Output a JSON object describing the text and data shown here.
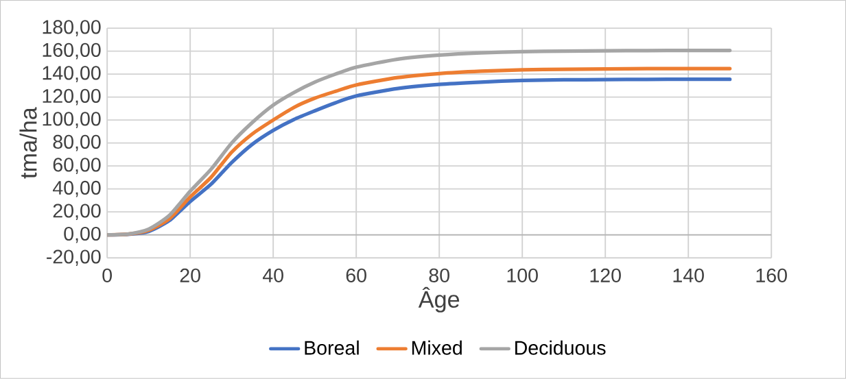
{
  "chart_data": {
    "type": "line",
    "xlabel": "Âge",
    "ylabel": "tma/ha",
    "x": [
      0,
      5,
      10,
      15,
      20,
      25,
      30,
      35,
      40,
      45,
      50,
      55,
      60,
      70,
      80,
      90,
      100,
      110,
      120,
      130,
      140,
      150
    ],
    "series": [
      {
        "name": "Boreal",
        "color": "#4472c4",
        "values": [
          0,
          0.5,
          3,
          12.5,
          29,
          44,
          63,
          79,
          91,
          100.5,
          108,
          115,
          121,
          127.5,
          131,
          133,
          134.5,
          135,
          135.2,
          135.4,
          135.5,
          135.5
        ]
      },
      {
        "name": "Mixed",
        "color": "#ed7d31",
        "values": [
          0,
          0.6,
          4,
          14,
          33,
          50,
          72,
          88,
          100,
          111,
          119,
          125,
          130.5,
          137,
          140.5,
          142.5,
          143.7,
          144.2,
          144.5,
          144.7,
          144.8,
          144.8
        ]
      },
      {
        "name": "Deciduous",
        "color": "#a5a5a5",
        "values": [
          0,
          0.7,
          5,
          17,
          38,
          57,
          80,
          98,
          113,
          124,
          133,
          140,
          146,
          153,
          156.5,
          158.5,
          159.5,
          160,
          160.3,
          160.5,
          160.6,
          160.6
        ]
      }
    ],
    "xlim": [
      0,
      160
    ],
    "xticks": [
      0,
      20,
      40,
      60,
      80,
      100,
      120,
      140,
      160
    ],
    "ylim": [
      -20,
      180
    ],
    "yticks": [
      {
        "value": -20,
        "label": "-20,00"
      },
      {
        "value": 0,
        "label": "0,00"
      },
      {
        "value": 20,
        "label": "20,00"
      },
      {
        "value": 40,
        "label": "40,00"
      },
      {
        "value": 60,
        "label": "60,00"
      },
      {
        "value": 80,
        "label": "80,00"
      },
      {
        "value": 100,
        "label": "100,00"
      },
      {
        "value": 120,
        "label": "120,00"
      },
      {
        "value": 140,
        "label": "140,00"
      },
      {
        "value": 160,
        "label": "160,00"
      },
      {
        "value": 180,
        "label": "180,00"
      }
    ],
    "grid": true,
    "legend": "bottom",
    "marker": "none",
    "line_style": "solid"
  }
}
